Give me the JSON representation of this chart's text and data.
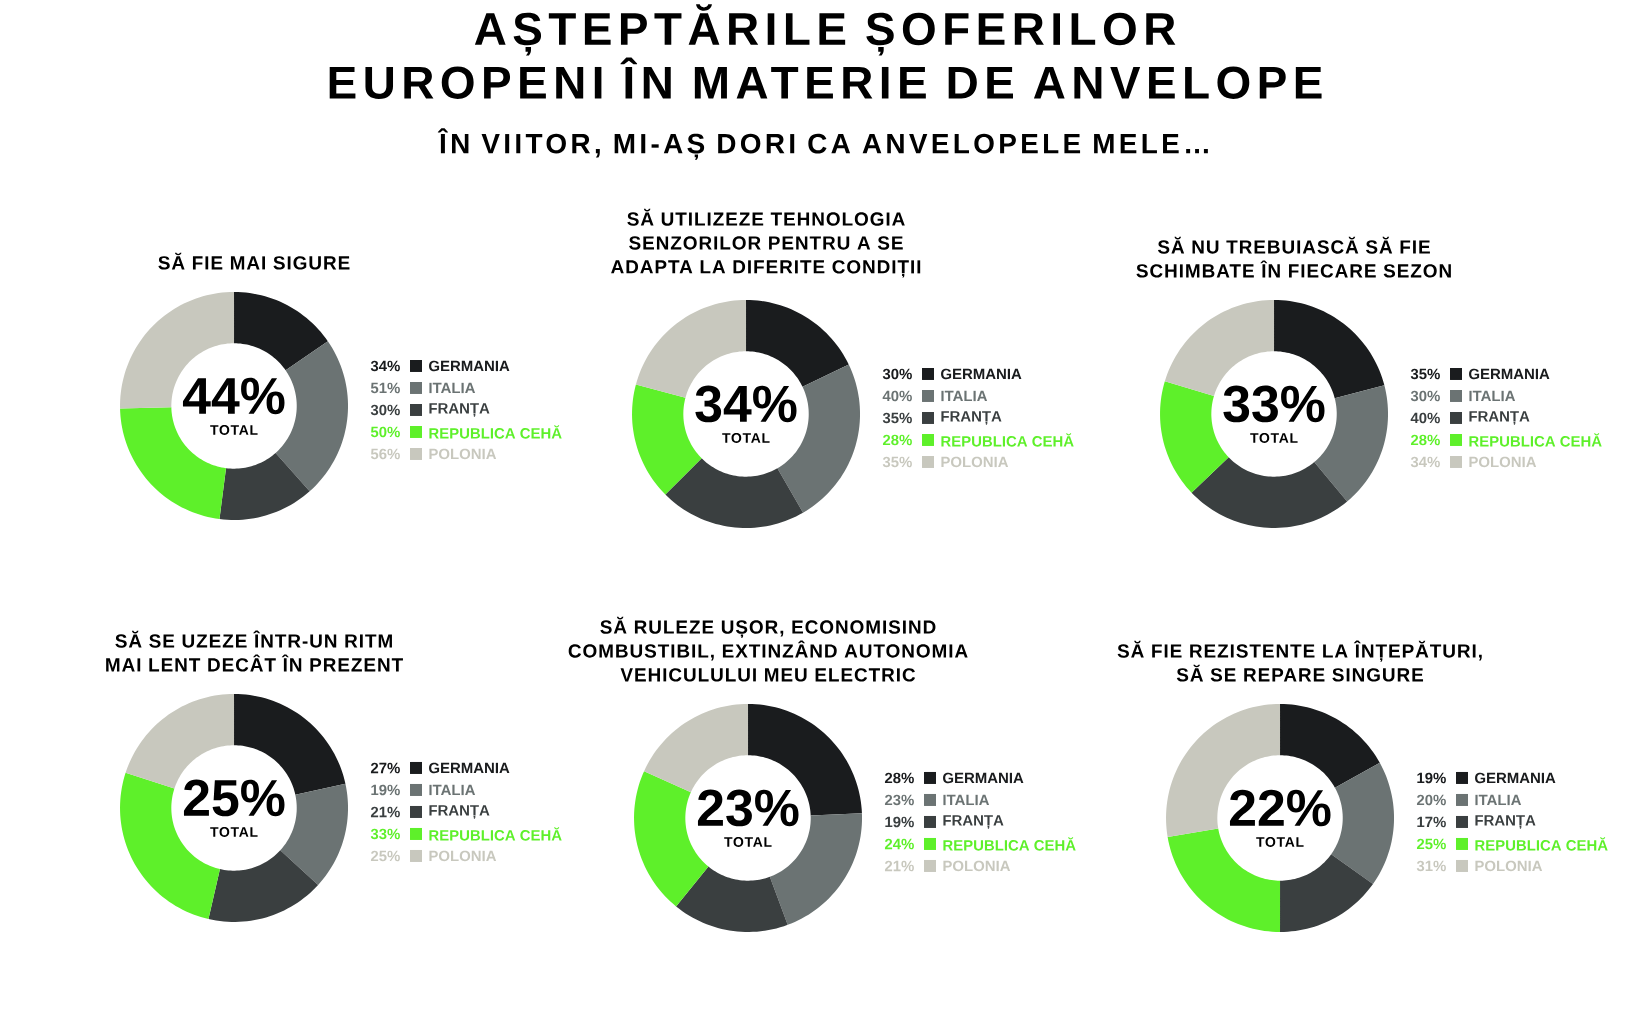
{
  "chart_data": [
    {
      "type": "other",
      "title": "AȘTEPTĂRILE ȘOFERILOR EUROPENI ÎN MATERIE DE ANVELOPE",
      "subtitle": "ÎN VIITOR, MI-AȘ DORI CA ANVELOPELE MELE…"
    },
    {
      "type": "donut",
      "title": "SĂ FIE MAI SIGURE",
      "categories": [
        "GERMANIA",
        "ITALIA",
        "FRANȚA",
        "REPUBLICA CEHĂ",
        "POLONIA"
      ],
      "values": [
        34,
        51,
        30,
        50,
        56
      ],
      "value_labels": [
        "34%",
        "51%",
        "30%",
        "50%",
        "56%"
      ],
      "colors": [
        "#1a1c1e",
        "#6b7373",
        "#3a3f40",
        "#5ef02a",
        "#c8c8be"
      ],
      "annotations": [
        "44%",
        "TOTAL"
      ],
      "legend": "right"
    },
    {
      "type": "donut",
      "title": "SĂ UTILIZEZE TEHNOLOGIA SENZORILOR PENTRU A SE ADAPTA LA DIFERITE CONDIȚII",
      "categories": [
        "GERMANIA",
        "ITALIA",
        "FRANȚA",
        "REPUBLICA CEHĂ",
        "POLONIA"
      ],
      "values": [
        30,
        40,
        35,
        28,
        35
      ],
      "value_labels": [
        "30%",
        "40%",
        "35%",
        "28%",
        "35%"
      ],
      "colors": [
        "#1a1c1e",
        "#6b7373",
        "#3a3f40",
        "#5ef02a",
        "#c8c8be"
      ],
      "annotations": [
        "34%",
        "TOTAL"
      ],
      "legend": "right"
    },
    {
      "type": "donut",
      "title": "SĂ NU TREBUIASCĂ SĂ FIE SCHIMBATE ÎN FIECARE SEZON",
      "categories": [
        "GERMANIA",
        "ITALIA",
        "FRANȚA",
        "REPUBLICA CEHĂ",
        "POLONIA"
      ],
      "values": [
        35,
        30,
        40,
        28,
        34
      ],
      "value_labels": [
        "35%",
        "30%",
        "40%",
        "28%",
        "34%"
      ],
      "colors": [
        "#1a1c1e",
        "#6b7373",
        "#3a3f40",
        "#5ef02a",
        "#c8c8be"
      ],
      "annotations": [
        "33%",
        "TOTAL"
      ],
      "legend": "right"
    },
    {
      "type": "donut",
      "title": "SĂ SE UZEZE ÎNTR-UN RITM MAI LENT DECÂT ÎN PREZENT",
      "categories": [
        "GERMANIA",
        "ITALIA",
        "FRANȚA",
        "REPUBLICA CEHĂ",
        "POLONIA"
      ],
      "values": [
        27,
        19,
        21,
        33,
        25
      ],
      "value_labels": [
        "27%",
        "19%",
        "21%",
        "33%",
        "25%"
      ],
      "colors": [
        "#1a1c1e",
        "#6b7373",
        "#3a3f40",
        "#5ef02a",
        "#c8c8be"
      ],
      "annotations": [
        "25%",
        "TOTAL"
      ],
      "legend": "right"
    },
    {
      "type": "donut",
      "title": "SĂ RULEZE UȘOR, ECONOMISIND COMBUSTIBIL, EXTINZÂND AUTONOMIA VEHICULULUI MEU ELECTRIC",
      "categories": [
        "GERMANIA",
        "ITALIA",
        "FRANȚA",
        "REPUBLICA CEHĂ",
        "POLONIA"
      ],
      "values": [
        28,
        23,
        19,
        24,
        21
      ],
      "value_labels": [
        "28%",
        "23%",
        "19%",
        "24%",
        "21%"
      ],
      "colors": [
        "#1a1c1e",
        "#6b7373",
        "#3a3f40",
        "#5ef02a",
        "#c8c8be"
      ],
      "annotations": [
        "23%",
        "TOTAL"
      ],
      "legend": "right"
    },
    {
      "type": "donut",
      "title": "SĂ FIE REZISTENTE LA ÎNȚEPĂTURI, SĂ SE REPARE SINGURE",
      "categories": [
        "GERMANIA",
        "ITALIA",
        "FRANȚA",
        "REPUBLICA CEHĂ",
        "POLONIA"
      ],
      "values": [
        19,
        20,
        17,
        25,
        31
      ],
      "value_labels": [
        "19%",
        "20%",
        "17%",
        "25%",
        "31%"
      ],
      "colors": [
        "#1a1c1e",
        "#6b7373",
        "#3a3f40",
        "#5ef02a",
        "#c8c8be"
      ],
      "annotations": [
        "22%",
        "TOTAL"
      ],
      "legend": "right"
    }
  ]
}
